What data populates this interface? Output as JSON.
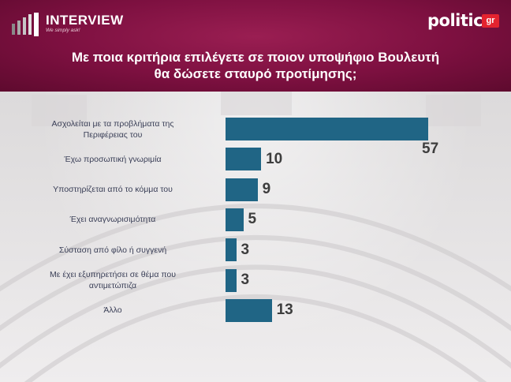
{
  "header": {
    "brand_left": "INTERVIEW",
    "brand_left_tagline": "We simply ask!",
    "brand_right": "politic",
    "brand_right_suffix": "gr",
    "title_line1": "Με ποια κριτήρια επιλέγετε σε ποιον υποψήφιο Βουλευτή",
    "title_line2": "θα δώσετε σταυρό προτίμησης;"
  },
  "colors": {
    "header_bg": "#7d1040",
    "bar": "#206585",
    "label_text": "#3a3f57",
    "value_text": "#3d3d3d",
    "politic_badge": "#e4232f"
  },
  "icons": [
    "interview-bars-icon"
  ],
  "chart_data": {
    "type": "bar",
    "orientation": "horizontal",
    "categories": [
      [
        "Ασχολείται με τα προβλήματα της",
        "Περιφέρειας του"
      ],
      [
        "Έχω προσωπική γνωριμία"
      ],
      [
        "Υποστηρίζεται από το κόμμα του"
      ],
      [
        "Έχει αναγνωρισιμότητα"
      ],
      [
        "Σύσταση από φίλο ή συγγενή"
      ],
      [
        "Με έχει εξυπηρετήσει σε θέμα που",
        "αντιμετώπιζα"
      ],
      [
        "Άλλο"
      ]
    ],
    "values": [
      57,
      10,
      9,
      5,
      3,
      3,
      13
    ],
    "value_labels": [
      "57",
      "10",
      "9",
      "5",
      "3",
      "3",
      "13"
    ],
    "xlim": [
      0,
      57
    ],
    "grid": false,
    "legend": "none"
  }
}
